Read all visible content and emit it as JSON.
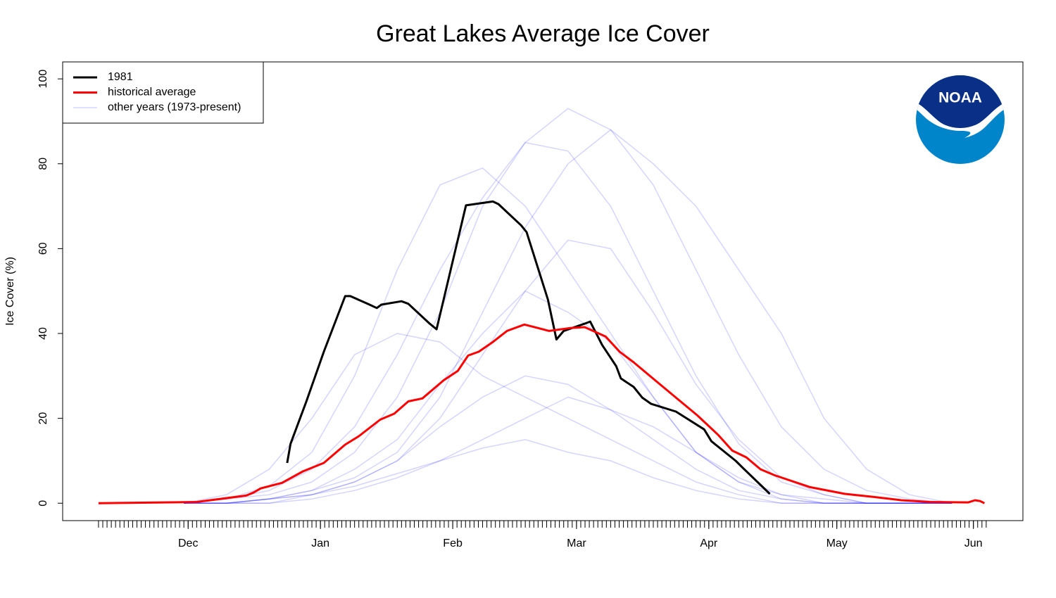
{
  "chart_data": {
    "type": "line",
    "title": "Great Lakes Average Ice Cover",
    "ylabel": "Ice Cover (%)",
    "logo_text": "NOAA",
    "legend": "topleft",
    "xlim": [
      -8.4,
      216.6
    ],
    "ylim": [
      -4.1,
      104
    ],
    "yticks": [
      0,
      20,
      40,
      60,
      80,
      100
    ],
    "xticks": [
      {
        "value": 21,
        "label": "Dec"
      },
      {
        "value": 52,
        "label": "Jan"
      },
      {
        "value": 83,
        "label": "Feb"
      },
      {
        "value": 112,
        "label": "Mar"
      },
      {
        "value": 143,
        "label": "Apr"
      },
      {
        "value": 173,
        "label": "May"
      },
      {
        "value": 205,
        "label": "Jun"
      }
    ],
    "xminor_ticks": [
      0,
      1,
      2,
      3,
      4,
      5,
      6,
      7,
      8,
      9,
      10,
      11,
      12,
      13,
      14,
      15,
      16,
      17,
      18,
      19,
      20,
      21,
      22,
      23,
      24,
      25,
      26,
      27,
      28,
      29,
      30,
      31,
      32,
      33,
      34,
      35,
      36,
      37,
      38,
      39,
      40,
      41,
      42,
      43,
      44,
      45,
      46,
      47,
      48,
      49,
      50,
      51,
      52,
      53,
      54,
      55,
      56,
      57,
      58,
      59,
      60,
      61,
      62,
      63,
      64,
      65,
      66,
      67,
      68,
      69,
      70,
      71,
      72,
      73,
      74,
      75,
      76,
      77,
      78,
      79,
      80,
      81,
      82,
      83,
      84,
      85,
      86,
      87,
      88,
      89,
      90,
      91,
      92,
      93,
      94,
      95,
      96,
      97,
      98,
      99,
      100,
      101,
      102,
      103,
      104,
      105,
      106,
      107,
      108,
      109,
      110,
      111,
      112,
      113,
      114,
      115,
      116,
      117,
      118,
      119,
      120,
      121,
      122,
      123,
      124,
      125,
      126,
      127,
      128,
      129,
      130,
      131,
      132,
      133,
      134,
      135,
      136,
      137,
      138,
      139,
      140,
      141,
      142,
      143,
      144,
      145,
      146,
      147,
      148,
      149,
      150,
      151,
      152,
      153,
      154,
      155,
      156,
      157,
      158,
      159,
      160,
      161,
      162,
      163,
      164,
      165,
      166,
      167,
      168,
      169,
      170,
      171,
      172,
      173,
      174,
      175,
      176,
      177,
      178,
      179,
      180,
      181,
      182,
      183,
      184,
      185,
      186,
      187,
      188,
      189,
      190,
      191,
      192,
      193,
      194,
      195,
      196,
      197,
      198,
      199,
      200,
      201,
      202,
      203,
      204,
      205,
      206,
      207,
      208
    ],
    "series": [
      {
        "name": "1981",
        "color": "#000000",
        "width": 3,
        "x": [
          44.2,
          45,
          48.7,
          52.8,
          57.8,
          59,
          63.5,
          65.2,
          66.3,
          71,
          72.6,
          77.6,
          79.2,
          80.4,
          86.1,
          92.4,
          93.7,
          99,
          100.3,
          105.3,
          107.3,
          109,
          113.9,
          115.2,
          118,
          121.3,
          122.4,
          125.4,
          127.4,
          129.5,
          135.3,
          141.9,
          143.6,
          149.3,
          151,
          157.3
        ],
        "values": [
          9.5,
          14,
          24,
          35.7,
          48.8,
          48.8,
          46.8,
          46,
          46.8,
          47.6,
          47,
          42.3,
          41,
          46,
          70.2,
          71.1,
          70.5,
          65.5,
          63.9,
          48,
          38.6,
          40.6,
          42.3,
          42.8,
          37.3,
          32.3,
          29.4,
          27.4,
          24.9,
          23.4,
          21.6,
          17.4,
          14.6,
          10,
          8.3,
          2.2
        ]
      },
      {
        "name": "historical average",
        "color": "#ff0000",
        "width": 3,
        "x": [
          0,
          23,
          34.6,
          36.3,
          38,
          43,
          47.9,
          52.8,
          57.8,
          61,
          66,
          69.3,
          72.6,
          75.9,
          80.9,
          84.2,
          86.6,
          89.1,
          92.4,
          95.7,
          99.8,
          105.6,
          110.6,
          113.9,
          118.8,
          122.1,
          125.4,
          130.4,
          135.3,
          140.3,
          145.2,
          148.5,
          151.8,
          155.1,
          158.4,
          166.7,
          174.9,
          181.5,
          188.1,
          194.7,
          203.8,
          205.4,
          206.6,
          207.6
        ],
        "values": [
          0,
          0.3,
          1.8,
          2.5,
          3.5,
          4.8,
          7.5,
          9.5,
          13.8,
          15.8,
          19.7,
          21.1,
          24,
          24.7,
          29,
          31.2,
          34.8,
          35.7,
          38,
          40.6,
          42.1,
          40.6,
          41.3,
          41.5,
          39.3,
          35.7,
          33.2,
          29,
          24.9,
          20.7,
          16.1,
          12.4,
          10.8,
          8,
          6.6,
          3.8,
          2.2,
          1.5,
          0.7,
          0.3,
          0.2,
          0.7,
          0.5,
          0
        ]
      },
      {
        "name": "other years (1973-present)",
        "color": "rgba(0,0,255,0.17)",
        "width": 1.5,
        "x": [
          20,
          30,
          40,
          50,
          60,
          70,
          80,
          90,
          100,
          110,
          120,
          130,
          140,
          150,
          160,
          170,
          180,
          190,
          200
        ],
        "values": [
          [
            0,
            1,
            3,
            8,
            18,
            35,
            55,
            72,
            85,
            93,
            88,
            75,
            55,
            35,
            18,
            8,
            3,
            1,
            0
          ],
          [
            0,
            0,
            1,
            3,
            6,
            12,
            25,
            45,
            65,
            80,
            88,
            80,
            70,
            55,
            40,
            20,
            8,
            2,
            0
          ],
          [
            0,
            1,
            4,
            12,
            30,
            55,
            75,
            79,
            70,
            55,
            40,
            25,
            12,
            5,
            2,
            1,
            0,
            0,
            0
          ],
          [
            0,
            0,
            1,
            2,
            4,
            7,
            10,
            13,
            15,
            12,
            10,
            6,
            3,
            1,
            0,
            0,
            0,
            0,
            0
          ],
          [
            0,
            0,
            1,
            3,
            8,
            15,
            28,
            40,
            50,
            45,
            38,
            25,
            12,
            5,
            1,
            0,
            0,
            0,
            0
          ],
          [
            0,
            0,
            0,
            2,
            5,
            10,
            20,
            35,
            50,
            62,
            60,
            45,
            28,
            15,
            6,
            2,
            0,
            0,
            0
          ],
          [
            0,
            0,
            1,
            2,
            5,
            10,
            18,
            25,
            30,
            28,
            22,
            15,
            8,
            3,
            1,
            0,
            0,
            0,
            0
          ],
          [
            0,
            1,
            2,
            5,
            12,
            25,
            45,
            70,
            85,
            83,
            70,
            50,
            30,
            14,
            5,
            2,
            0,
            0,
            0
          ],
          [
            0,
            2,
            8,
            20,
            35,
            40,
            38,
            30,
            25,
            20,
            15,
            10,
            5,
            2,
            0,
            0,
            0,
            0,
            0
          ],
          [
            0,
            0,
            0,
            1,
            3,
            6,
            10,
            15,
            20,
            25,
            22,
            18,
            12,
            6,
            2,
            0,
            0,
            0,
            0
          ]
        ]
      }
    ]
  }
}
